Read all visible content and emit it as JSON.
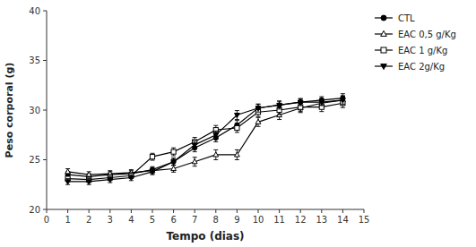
{
  "chart_data": {
    "type": "line",
    "xlabel": "Tempo (dias)",
    "ylabel": "Peso corporal (g)",
    "x": [
      1,
      2,
      3,
      4,
      5,
      6,
      7,
      8,
      9,
      10,
      11,
      12,
      13,
      14
    ],
    "series": [
      {
        "name": "CTL",
        "color": "#000000",
        "marker": "circle",
        "values": [
          23.5,
          23.3,
          23.5,
          23.6,
          24.0,
          24.8,
          26.2,
          27.2,
          28.5,
          30.2,
          30.5,
          30.8,
          31.0,
          31.2
        ],
        "errors": [
          0.3,
          0.3,
          0.3,
          0.3,
          0.3,
          0.35,
          0.4,
          0.4,
          0.45,
          0.4,
          0.4,
          0.35,
          0.35,
          0.45
        ]
      },
      {
        "name": "EAC 0,5 g/Kg",
        "color": "#000000",
        "marker": "triangle-up-open",
        "values": [
          23.8,
          23.5,
          23.6,
          23.7,
          23.9,
          24.1,
          24.8,
          25.5,
          25.5,
          28.8,
          29.5,
          30.2,
          30.7,
          31.0
        ],
        "errors": [
          0.3,
          0.3,
          0.3,
          0.3,
          0.3,
          0.35,
          0.45,
          0.5,
          0.5,
          0.45,
          0.45,
          0.45,
          0.45,
          0.45
        ]
      },
      {
        "name": "EAC 1 g/Kg",
        "color": "#000000",
        "marker": "square-open",
        "values": [
          23.1,
          23.0,
          23.2,
          23.4,
          25.3,
          25.8,
          26.8,
          28.0,
          28.2,
          29.8,
          30.0,
          30.3,
          30.3,
          30.7
        ],
        "errors": [
          0.3,
          0.3,
          0.3,
          0.3,
          0.35,
          0.4,
          0.45,
          0.45,
          0.45,
          0.45,
          0.45,
          0.45,
          0.45,
          0.45
        ]
      },
      {
        "name": "EAC 2g/Kg",
        "color": "#000000",
        "marker": "triangle-down",
        "values": [
          22.8,
          22.8,
          23.0,
          23.2,
          23.8,
          24.8,
          26.5,
          27.5,
          29.5,
          30.2,
          30.5,
          30.8,
          30.8,
          31.0
        ],
        "errors": [
          0.3,
          0.3,
          0.3,
          0.3,
          0.3,
          0.35,
          0.4,
          0.4,
          0.45,
          0.4,
          0.4,
          0.35,
          0.35,
          0.4
        ]
      }
    ],
    "xlim": [
      0,
      15
    ],
    "ylim": [
      20,
      40
    ],
    "xticks": [
      0,
      1,
      2,
      3,
      4,
      5,
      6,
      7,
      8,
      9,
      10,
      11,
      12,
      13,
      14,
      15
    ],
    "yticks": [
      20,
      25,
      30,
      35,
      40
    ],
    "grid": false,
    "legend": "right"
  }
}
